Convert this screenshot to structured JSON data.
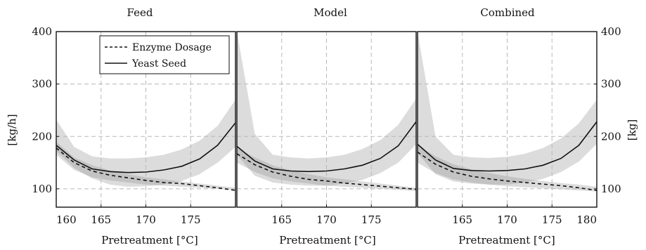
{
  "chart_data": [
    {
      "type": "line",
      "title": "Feed",
      "xlabel": "Pretreatment [°C]",
      "ylabel": "[kg/h]",
      "xlim": [
        160,
        180
      ],
      "ylim": [
        65,
        400
      ],
      "xticks": [
        160,
        165,
        170,
        175
      ],
      "yticks": [
        100,
        200,
        300,
        400
      ],
      "grid": true,
      "legend": {
        "placement": "top-right",
        "entries": [
          "Enzyme Dosage",
          "Yeast Seed"
        ]
      },
      "series": [
        {
          "name": "Enzyme Dosage",
          "style": "dashed",
          "x": [
            160,
            162,
            164,
            166,
            168,
            170,
            172,
            174,
            176,
            178,
            180
          ],
          "y": [
            178,
            150,
            134,
            126,
            121,
            116,
            112,
            110,
            106,
            102,
            97
          ],
          "band_lo": [
            165,
            136,
            122,
            116,
            112,
            108,
            106,
            104,
            102,
            100,
            98
          ],
          "band_hi": [
            190,
            160,
            145,
            135,
            128,
            122,
            118,
            114,
            110,
            106,
            102
          ]
        },
        {
          "name": "Yeast Seed",
          "style": "solid",
          "x": [
            160,
            162,
            164,
            166,
            168,
            170,
            172,
            174,
            176,
            178,
            180
          ],
          "y": [
            183,
            155,
            138,
            133,
            131,
            132,
            136,
            143,
            157,
            183,
            226
          ],
          "band_lo": [
            172,
            140,
            120,
            108,
            104,
            105,
            108,
            115,
            128,
            150,
            180
          ],
          "band_hi": [
            232,
            180,
            162,
            158,
            158,
            160,
            165,
            175,
            192,
            220,
            270
          ]
        }
      ]
    },
    {
      "type": "line",
      "title": "Model",
      "xlabel": "Pretreatment [°C]",
      "xlim": [
        160,
        180
      ],
      "ylim": [
        65,
        400
      ],
      "xticks": [
        165,
        170,
        175
      ],
      "grid": true,
      "series": [
        {
          "name": "Enzyme Dosage",
          "style": "dashed",
          "x": [
            160,
            162,
            164,
            166,
            168,
            170,
            172,
            174,
            176,
            178,
            180
          ],
          "y": [
            167,
            146,
            132,
            124,
            118,
            115,
            111,
            108,
            105,
            102,
            99
          ],
          "band_lo": [
            150,
            132,
            120,
            114,
            110,
            106,
            104,
            102,
            100,
            98,
            96
          ],
          "band_hi": [
            178,
            160,
            145,
            135,
            128,
            122,
            118,
            114,
            110,
            106,
            102
          ]
        },
        {
          "name": "Yeast Seed",
          "style": "solid",
          "x": [
            160,
            162,
            164,
            166,
            168,
            170,
            172,
            174,
            176,
            178,
            180
          ],
          "y": [
            181,
            153,
            138,
            134,
            133,
            134,
            138,
            145,
            158,
            182,
            228
          ],
          "band_lo": [
            165,
            125,
            112,
            108,
            106,
            106,
            110,
            117,
            130,
            150,
            185
          ],
          "band_hi": [
            400,
            205,
            165,
            160,
            158,
            160,
            165,
            176,
            193,
            222,
            272
          ]
        }
      ]
    },
    {
      "type": "line",
      "title": "Combined",
      "xlabel": "Pretreatment [°C]",
      "ylabel": "[kg]",
      "xlim": [
        160,
        180
      ],
      "ylim": [
        65,
        400
      ],
      "xticks": [
        165,
        170,
        175,
        180
      ],
      "yticks": [
        100,
        200,
        300,
        400
      ],
      "grid": true,
      "series": [
        {
          "name": "Enzyme Dosage",
          "style": "dashed",
          "x": [
            160,
            162,
            164,
            166,
            168,
            170,
            172,
            174,
            176,
            178,
            180
          ],
          "y": [
            170,
            147,
            132,
            124,
            119,
            115,
            112,
            109,
            106,
            102,
            97
          ],
          "band_lo": [
            150,
            130,
            118,
            112,
            108,
            105,
            103,
            101,
            99,
            97,
            95
          ],
          "band_hi": [
            183,
            162,
            147,
            137,
            130,
            124,
            119,
            115,
            111,
            108,
            104
          ]
        },
        {
          "name": "Yeast Seed",
          "style": "solid",
          "x": [
            160,
            162,
            164,
            166,
            168,
            170,
            172,
            174,
            176,
            178,
            180
          ],
          "y": [
            185,
            155,
            139,
            135,
            134,
            135,
            138,
            145,
            158,
            183,
            228
          ],
          "band_lo": [
            168,
            128,
            114,
            110,
            108,
            108,
            112,
            119,
            132,
            152,
            186
          ],
          "band_hi": [
            400,
            200,
            165,
            160,
            159,
            161,
            167,
            178,
            196,
            225,
            270
          ]
        }
      ]
    }
  ]
}
